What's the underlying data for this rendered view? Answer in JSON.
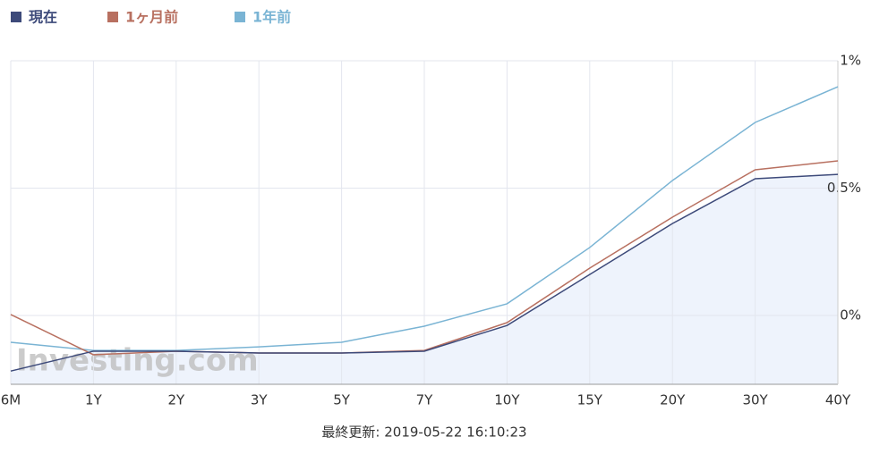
{
  "chart_data": {
    "type": "line",
    "categories": [
      "6M",
      "1Y",
      "2Y",
      "3Y",
      "5Y",
      "7Y",
      "10Y",
      "15Y",
      "20Y",
      "30Y",
      "40Y"
    ],
    "series": [
      {
        "name": "現在",
        "color": "#3d4a7a",
        "fill": "#eef3fc",
        "values": [
          -0.218,
          -0.14,
          -0.14,
          -0.147,
          -0.147,
          -0.14,
          -0.039,
          0.161,
          0.361,
          0.537,
          0.554
        ]
      },
      {
        "name": "1ヶ月前",
        "color": "#b87060",
        "values": [
          0.004,
          -0.154,
          -0.14,
          -0.147,
          -0.147,
          -0.137,
          -0.028,
          0.186,
          0.386,
          0.572,
          0.607
        ]
      },
      {
        "name": "1年前",
        "color": "#7ab4d4",
        "values": [
          -0.105,
          -0.137,
          -0.137,
          -0.123,
          -0.105,
          -0.042,
          0.046,
          0.267,
          0.53,
          0.758,
          0.898
        ]
      }
    ],
    "ylim": [
      -0.27,
      1
    ],
    "yticks": [
      {
        "value": 0,
        "label": "0%"
      },
      {
        "value": 0.5,
        "label": "0.5%"
      },
      {
        "value": 1,
        "label": "1%"
      }
    ],
    "grid": true,
    "legend": "top-left",
    "watermark": "Investing.com",
    "footer": "最終更新: 2019-05-22 16:10:23"
  }
}
